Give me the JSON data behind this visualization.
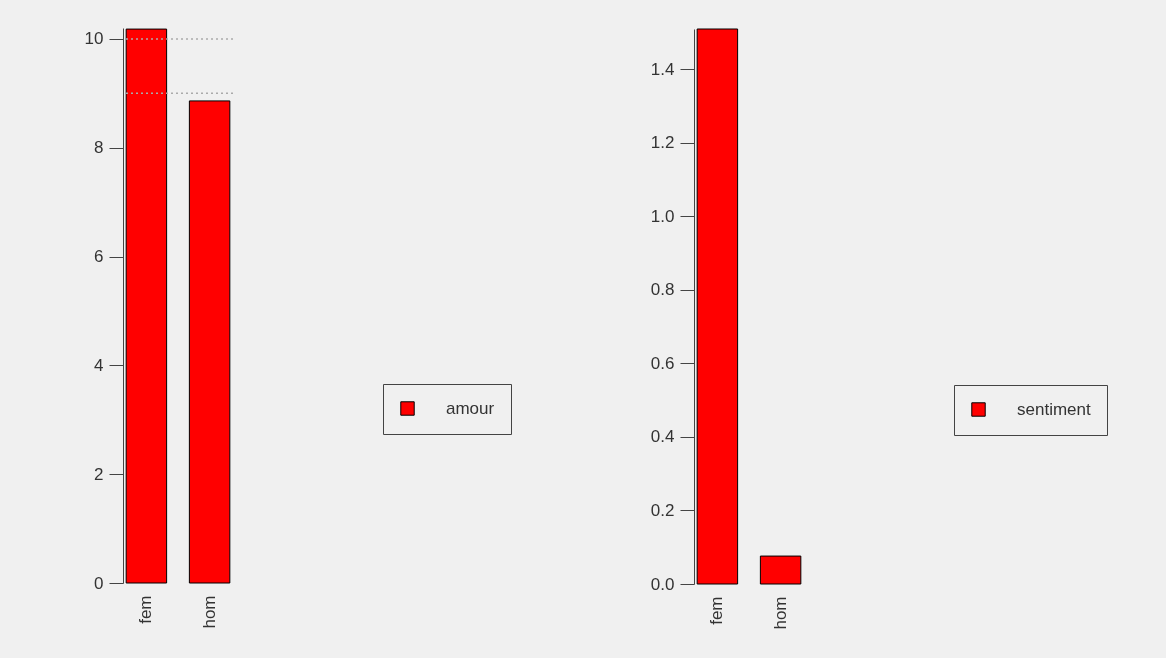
{
  "chart_data": [
    {
      "type": "bar",
      "categories": [
        "fem",
        "hom"
      ],
      "series": [
        {
          "name": "amour",
          "color": "#ff0000",
          "values": [
            10.18,
            8.86
          ]
        }
      ],
      "ylim": [
        0,
        10.2
      ],
      "yticks": [
        0,
        2,
        4,
        6,
        8,
        10
      ],
      "legend": "right",
      "grid": false,
      "ref_lines": [
        {
          "axis": "y",
          "value": 10,
          "color": "#aaaaaa",
          "line_style": "dotted"
        },
        {
          "axis": "y",
          "value": 9,
          "color": "#aaaaaa",
          "line_style": "dotted"
        }
      ]
    },
    {
      "type": "bar",
      "categories": [
        "fem",
        "hom"
      ],
      "series": [
        {
          "name": "sentiment",
          "color": "#ff0000",
          "values": [
            1.51,
            0.076
          ]
        }
      ],
      "ylim": [
        0,
        1.51
      ],
      "yticks": [
        {
          "value": 0,
          "label": "0.0"
        },
        0.2,
        0.4,
        0.6,
        0.8,
        {
          "value": 1,
          "label": "1.0"
        },
        1.2,
        1.4
      ],
      "legend": "right",
      "grid": false
    }
  ]
}
